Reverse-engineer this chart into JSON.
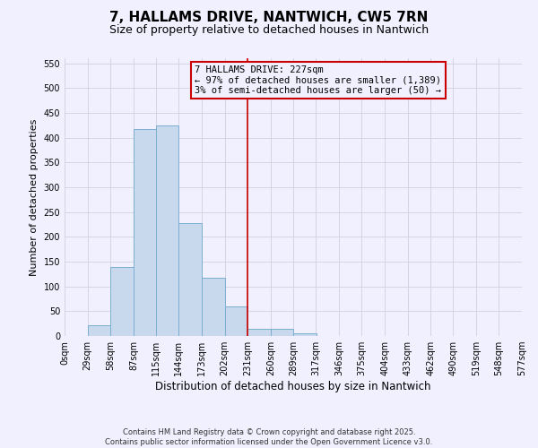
{
  "title": "7, HALLAMS DRIVE, NANTWICH, CW5 7RN",
  "subtitle": "Size of property relative to detached houses in Nantwich",
  "xlabel": "Distribution of detached houses by size in Nantwich",
  "ylabel": "Number of detached properties",
  "bin_labels": [
    "0sqm",
    "29sqm",
    "58sqm",
    "87sqm",
    "115sqm",
    "144sqm",
    "173sqm",
    "202sqm",
    "231sqm",
    "260sqm",
    "289sqm",
    "317sqm",
    "346sqm",
    "375sqm",
    "404sqm",
    "433sqm",
    "462sqm",
    "490sqm",
    "519sqm",
    "548sqm",
    "577sqm"
  ],
  "bin_edges": [
    0,
    29,
    58,
    87,
    115,
    144,
    173,
    202,
    231,
    260,
    289,
    317,
    346,
    375,
    404,
    433,
    462,
    490,
    519,
    548,
    577
  ],
  "bar_heights": [
    0,
    22,
    140,
    418,
    425,
    228,
    117,
    59,
    14,
    15,
    6,
    0,
    0,
    0,
    0,
    0,
    0,
    0,
    0,
    0,
    0
  ],
  "bar_color": "#c8d8ed",
  "bar_edgecolor": "#7aaed0",
  "vline_x": 231,
  "vline_color": "#cc0000",
  "annotation_line1": "7 HALLAMS DRIVE: 227sqm",
  "annotation_line2": "← 97% of detached houses are smaller (1,389)",
  "annotation_line3": "3% of semi-detached houses are larger (50) →",
  "annotation_box_color": "#cc0000",
  "ylim": [
    0,
    560
  ],
  "yticks": [
    0,
    50,
    100,
    150,
    200,
    250,
    300,
    350,
    400,
    450,
    500,
    550
  ],
  "xlim_max": 577,
  "background_color": "#f0f0ff",
  "grid_color": "#d0d0e0",
  "footer1": "Contains HM Land Registry data © Crown copyright and database right 2025.",
  "footer2": "Contains public sector information licensed under the Open Government Licence v3.0.",
  "title_fontsize": 11,
  "subtitle_fontsize": 9,
  "xlabel_fontsize": 8.5,
  "ylabel_fontsize": 8,
  "tick_fontsize": 7,
  "annot_fontsize": 7.5,
  "footer_fontsize": 6
}
